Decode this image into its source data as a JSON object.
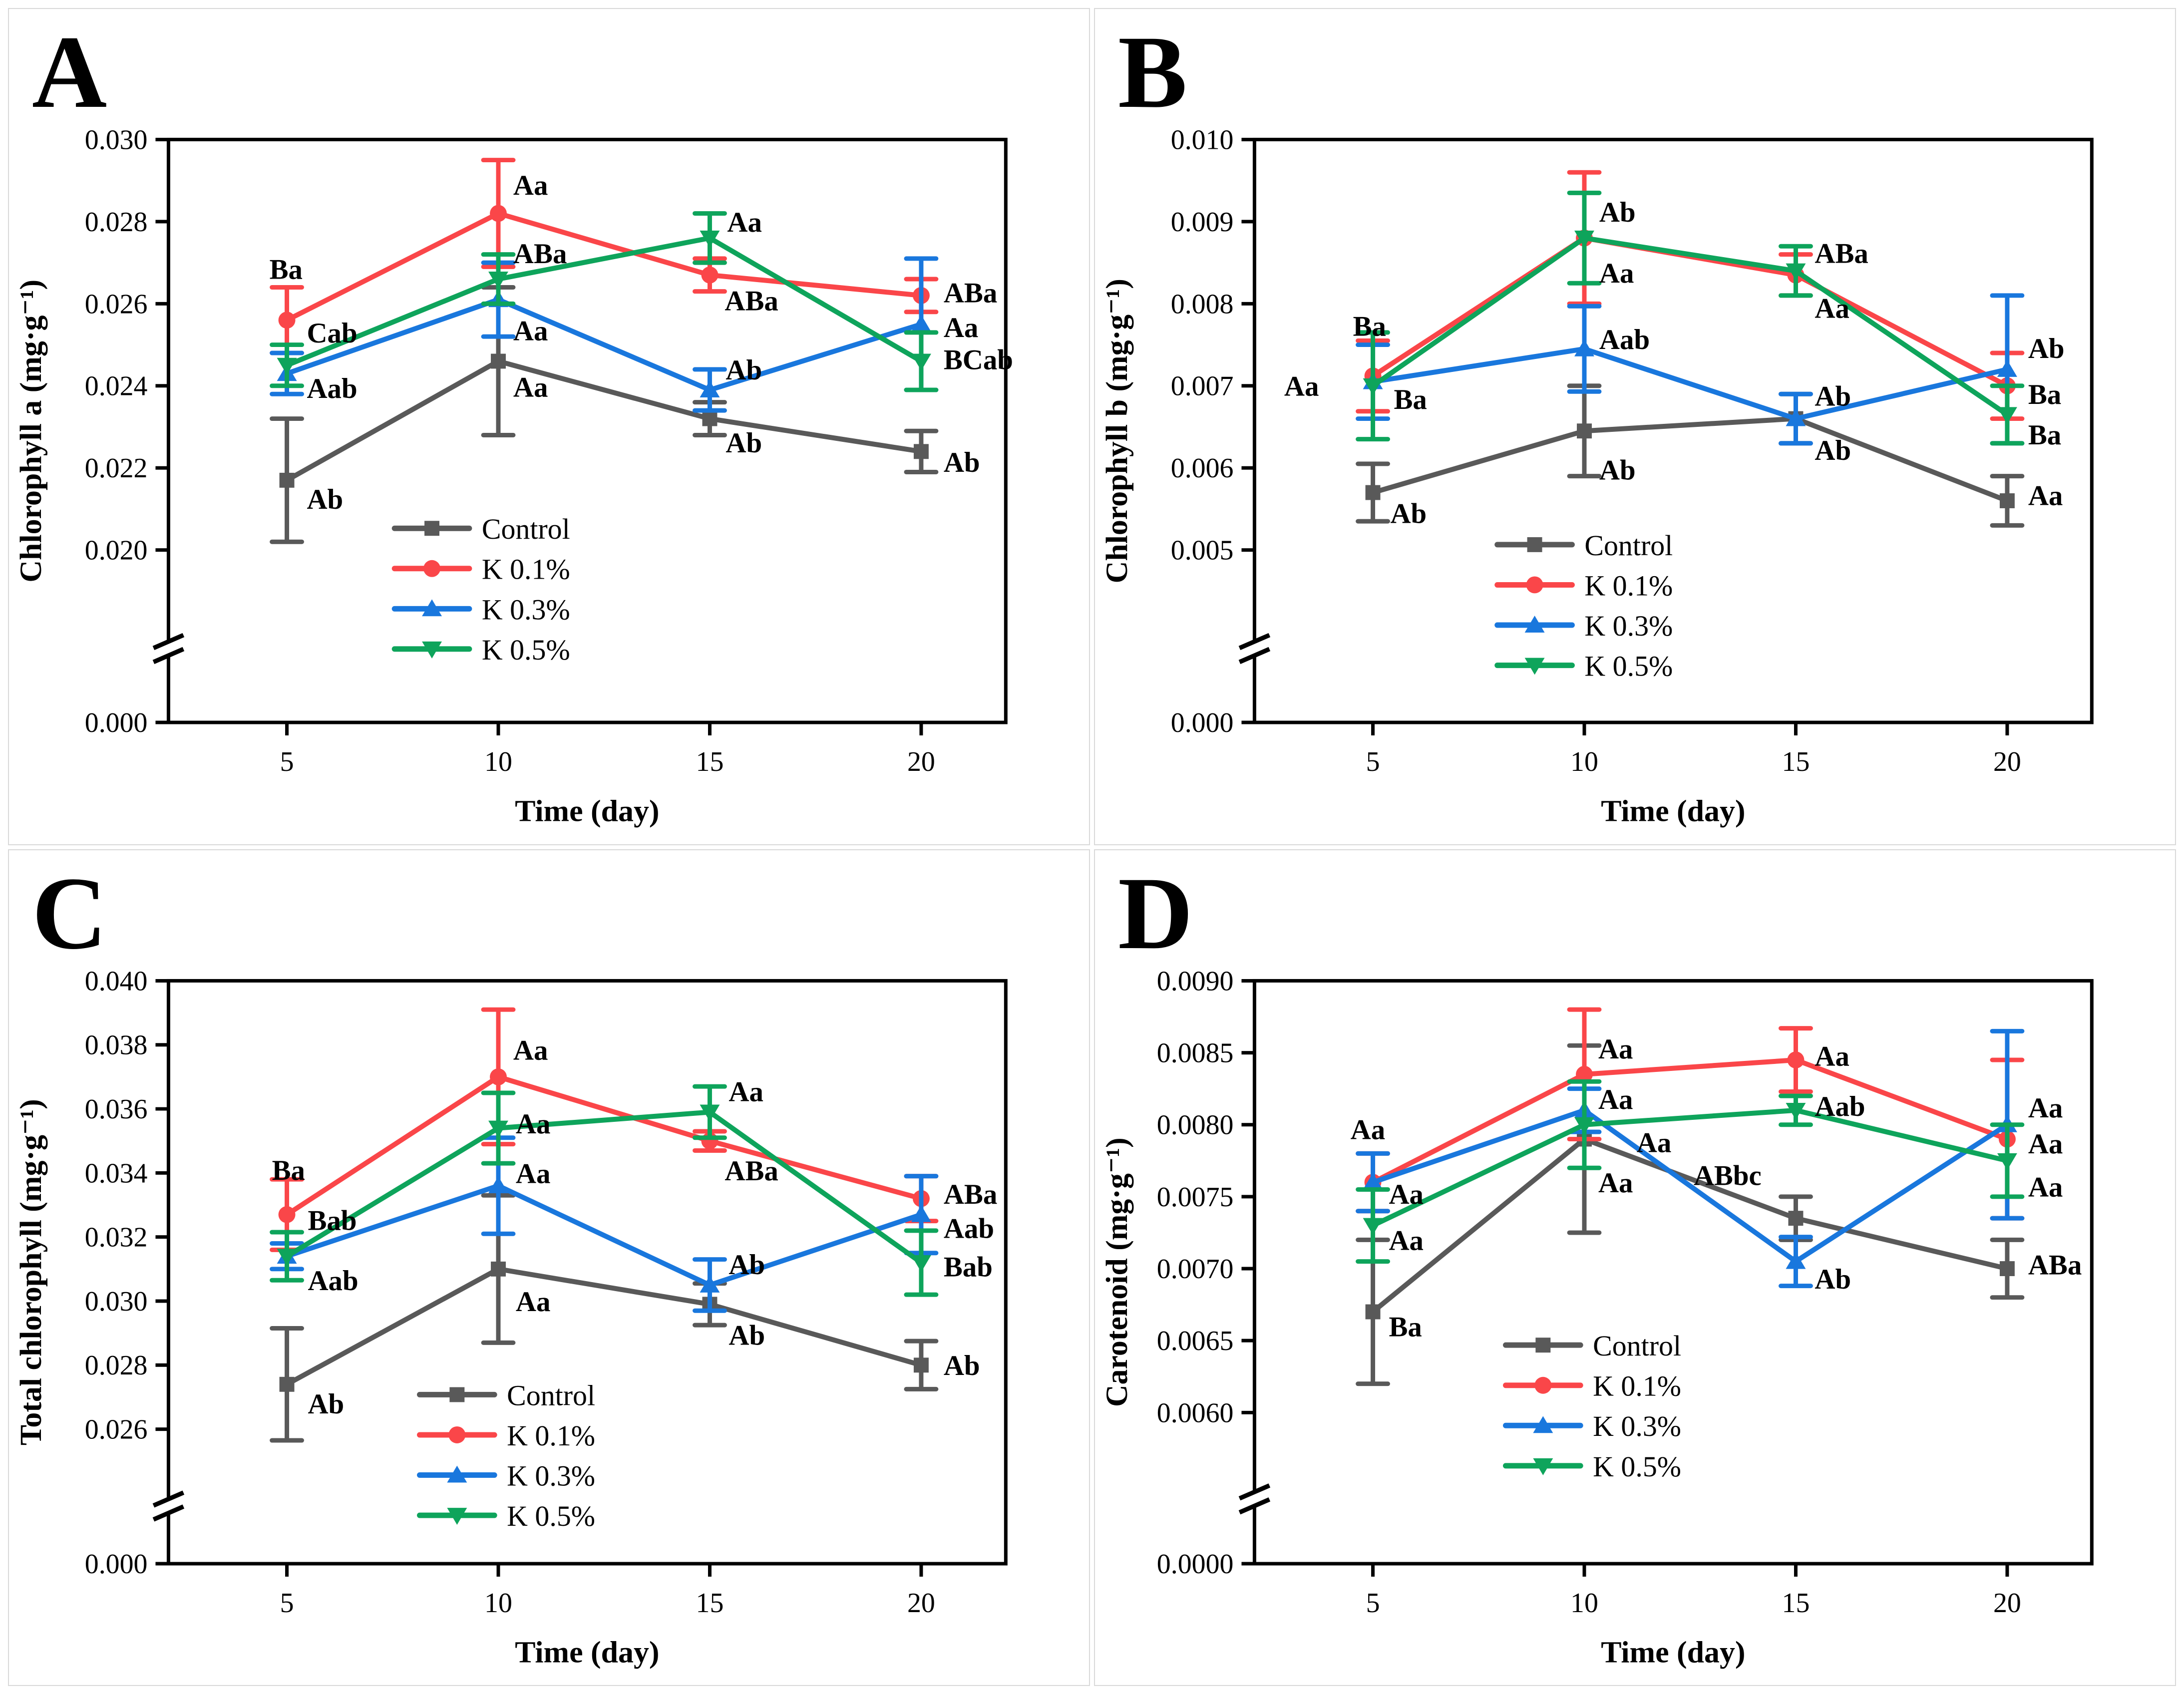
{
  "figure": {
    "background": "#ffffff",
    "panel_border_color": "#d9d9d9",
    "axis_color": "#000000",
    "legend_labels": [
      "Control",
      "K 0.1%",
      "K 0.3%",
      "K 0.5%"
    ],
    "series_colors": {
      "control": "#595959",
      "k01": "#FA4649",
      "k03": "#1977DD",
      "k05": "#0EA45B"
    }
  },
  "chart_data": [
    {
      "type": "line",
      "panel_label": "A",
      "xlabel": "Time (day)",
      "ylabel": "Chlorophyll a (mg·g⁻¹)",
      "x": [
        5,
        10,
        15,
        20
      ],
      "x_tick_labels": [
        "5",
        "10",
        "15",
        "20"
      ],
      "xlim": [
        2.2,
        22
      ],
      "y_axis": {
        "axis_break": true,
        "zero_label": "0.000",
        "ticks": [
          {
            "v": 0.03,
            "label": "0.030"
          },
          {
            "v": 0.028,
            "label": "0.028"
          },
          {
            "v": 0.026,
            "label": "0.026"
          },
          {
            "v": 0.024,
            "label": "0.024"
          },
          {
            "v": 0.022,
            "label": "0.022"
          },
          {
            "v": 0.02,
            "label": "0.020"
          }
        ]
      },
      "legend": {
        "fx": 0.27,
        "fy": 0.667
      },
      "series": [
        {
          "name": "Control",
          "color": "#595959",
          "marker": "square",
          "y": [
            0.0217,
            0.0246,
            0.0232,
            0.0224
          ],
          "err": [
            0.0015,
            0.0018,
            0.0004,
            0.0005
          ]
        },
        {
          "name": "K 0.1%",
          "color": "#FA4649",
          "marker": "circle",
          "y": [
            0.0256,
            0.0282,
            0.0267,
            0.0262
          ],
          "err": [
            0.0008,
            0.0013,
            0.0004,
            0.0004
          ]
        },
        {
          "name": "K 0.3%",
          "color": "#1977DD",
          "marker": "triangle-up",
          "y": [
            0.0243,
            0.0261,
            0.0239,
            0.0255
          ],
          "err": [
            0.0005,
            0.0009,
            0.0005,
            0.0016
          ]
        },
        {
          "name": "K 0.5%",
          "color": "#0EA45B",
          "marker": "triangle-down",
          "y": [
            0.0245,
            0.0266,
            0.0276,
            0.0246
          ],
          "err": [
            0.0005,
            0.0006,
            0.0006,
            0.0007
          ]
        }
      ],
      "annotations": [
        {
          "x": 5,
          "y": 0.02685,
          "dx": -35,
          "text": "Ba"
        },
        {
          "x": 5,
          "y": 0.0253,
          "dx": 40,
          "text": "Cab"
        },
        {
          "x": 5,
          "y": 0.02395,
          "dx": 40,
          "text": "Aab"
        },
        {
          "x": 5,
          "y": 0.02125,
          "dx": 40,
          "text": "Ab"
        },
        {
          "x": 10,
          "y": 0.0289,
          "dx": 30,
          "text": "Aa"
        },
        {
          "x": 10,
          "y": 0.02723,
          "dx": 30,
          "text": "ABa"
        },
        {
          "x": 10,
          "y": 0.02535,
          "dx": 30,
          "text": "Aa"
        },
        {
          "x": 10,
          "y": 0.02398,
          "dx": 30,
          "text": "Aa"
        },
        {
          "x": 15,
          "y": 0.028,
          "dx": 35,
          "text": "Aa"
        },
        {
          "x": 15,
          "y": 0.02608,
          "dx": 30,
          "text": "ABa"
        },
        {
          "x": 15,
          "y": 0.0244,
          "dx": 32,
          "text": "Ab"
        },
        {
          "x": 15,
          "y": 0.02262,
          "dx": 32,
          "text": "Ab"
        },
        {
          "x": 20,
          "y": 0.02628,
          "dx": 45,
          "text": "ABa"
        },
        {
          "x": 20,
          "y": 0.02543,
          "dx": 45,
          "text": "Aa"
        },
        {
          "x": 20,
          "y": 0.02465,
          "dx": 45,
          "text": "BCab"
        },
        {
          "x": 20,
          "y": 0.02215,
          "dx": 45,
          "text": "Ab"
        }
      ]
    },
    {
      "type": "line",
      "panel_label": "B",
      "xlabel": "Time (day)",
      "ylabel": "Chlorophyll b (mg·g⁻¹)",
      "x": [
        5,
        10,
        15,
        20
      ],
      "x_tick_labels": [
        "5",
        "10",
        "15",
        "20"
      ],
      "xlim": [
        2.2,
        22
      ],
      "y_axis": {
        "axis_break": true,
        "zero_label": "0.000",
        "ticks": [
          {
            "v": 0.01,
            "label": "0.010"
          },
          {
            "v": 0.009,
            "label": "0.009"
          },
          {
            "v": 0.008,
            "label": "0.008"
          },
          {
            "v": 0.007,
            "label": "0.007"
          },
          {
            "v": 0.006,
            "label": "0.006"
          },
          {
            "v": 0.005,
            "label": "0.005"
          }
        ]
      },
      "legend": {
        "fx": 0.29,
        "fy": 0.695
      },
      "series": [
        {
          "name": "Control",
          "color": "#595959",
          "marker": "square",
          "y": [
            0.0057,
            0.00645,
            0.0066,
            0.0056
          ],
          "err": [
            0.00035,
            0.00055,
            0.0003,
            0.0003
          ]
        },
        {
          "name": "K 0.1%",
          "color": "#FA4649",
          "marker": "circle",
          "y": [
            0.00712,
            0.0088,
            0.00835,
            0.007
          ],
          "err": [
            0.00043,
            0.0008,
            0.00025,
            0.0004
          ]
        },
        {
          "name": "K 0.3%",
          "color": "#1977DD",
          "marker": "triangle-up",
          "y": [
            0.00705,
            0.00745,
            0.0066,
            0.0072
          ],
          "err": [
            0.00045,
            0.00052,
            0.0003,
            0.0009
          ]
        },
        {
          "name": "K 0.5%",
          "color": "#0EA45B",
          "marker": "triangle-down",
          "y": [
            0.007,
            0.0088,
            0.0084,
            0.00665
          ],
          "err": [
            0.00065,
            0.00055,
            0.0003,
            0.00035
          ]
        }
      ],
      "annotations": [
        {
          "x": 5,
          "y": 0.00773,
          "dx": -40,
          "text": "Ba"
        },
        {
          "x": 5,
          "y": 0.007,
          "dx": -178,
          "text": "Aa"
        },
        {
          "x": 5,
          "y": 0.00684,
          "dx": 42,
          "text": "Ba"
        },
        {
          "x": 5,
          "y": 0.00545,
          "dx": 35,
          "text": "Ab"
        },
        {
          "x": 10,
          "y": 0.00912,
          "dx": 30,
          "text": "Ab"
        },
        {
          "x": 10,
          "y": 0.00838,
          "dx": 30,
          "text": "Aa"
        },
        {
          "x": 10,
          "y": 0.00757,
          "dx": 30,
          "text": "Aab"
        },
        {
          "x": 10,
          "y": 0.00598,
          "dx": 30,
          "text": "Ab"
        },
        {
          "x": 15,
          "y": 0.00862,
          "dx": 38,
          "text": "ABa"
        },
        {
          "x": 15,
          "y": 0.00795,
          "dx": 38,
          "text": "Aa"
        },
        {
          "x": 15,
          "y": 0.00688,
          "dx": 38,
          "text": "Ab"
        },
        {
          "x": 15,
          "y": 0.00622,
          "dx": 38,
          "text": "Ab"
        },
        {
          "x": 20,
          "y": 0.00746,
          "dx": 42,
          "text": "Ab"
        },
        {
          "x": 20,
          "y": 0.0069,
          "dx": 42,
          "text": "Ba"
        },
        {
          "x": 20,
          "y": 0.00641,
          "dx": 42,
          "text": "Ba"
        },
        {
          "x": 20,
          "y": 0.00567,
          "dx": 42,
          "text": "Aa"
        }
      ]
    },
    {
      "type": "line",
      "panel_label": "C",
      "xlabel": "Time (day)",
      "ylabel": "Total chlorophyll (mg·g⁻¹)",
      "x": [
        5,
        10,
        15,
        20
      ],
      "x_tick_labels": [
        "5",
        "10",
        "15",
        "20"
      ],
      "xlim": [
        2.2,
        22
      ],
      "y_axis": {
        "axis_break": true,
        "zero_label": "0.000",
        "ticks": [
          {
            "v": 0.04,
            "label": "0.040"
          },
          {
            "v": 0.038,
            "label": "0.038"
          },
          {
            "v": 0.036,
            "label": "0.036"
          },
          {
            "v": 0.034,
            "label": "0.034"
          },
          {
            "v": 0.032,
            "label": "0.032"
          },
          {
            "v": 0.03,
            "label": "0.030"
          },
          {
            "v": 0.028,
            "label": "0.028"
          },
          {
            "v": 0.026,
            "label": "0.026"
          }
        ]
      },
      "legend": {
        "fx": 0.3,
        "fy": 0.71
      },
      "series": [
        {
          "name": "Control",
          "color": "#595959",
          "marker": "square",
          "y": [
            0.0274,
            0.031,
            0.0299,
            0.028
          ],
          "err": [
            0.00175,
            0.0023,
            0.00065,
            0.00075
          ]
        },
        {
          "name": "K 0.1%",
          "color": "#FA4649",
          "marker": "circle",
          "y": [
            0.0327,
            0.037,
            0.035,
            0.0332
          ],
          "err": [
            0.0011,
            0.0021,
            0.0003,
            0.0007
          ]
        },
        {
          "name": "K 0.3%",
          "color": "#1977DD",
          "marker": "triangle-up",
          "y": [
            0.0314,
            0.0336,
            0.0305,
            0.0327
          ],
          "err": [
            0.0004,
            0.0015,
            0.0008,
            0.0012
          ]
        },
        {
          "name": "K 0.5%",
          "color": "#0EA45B",
          "marker": "triangle-down",
          "y": [
            0.0314,
            0.0354,
            0.0359,
            0.0312
          ],
          "err": [
            0.00075,
            0.0011,
            0.0008,
            0.001
          ]
        }
      ],
      "annotations": [
        {
          "x": 5,
          "y": 0.0341,
          "dx": -30,
          "text": "Ba"
        },
        {
          "x": 5,
          "y": 0.03253,
          "dx": 42,
          "text": "Bab"
        },
        {
          "x": 5,
          "y": 0.03065,
          "dx": 42,
          "text": "Aab"
        },
        {
          "x": 5,
          "y": 0.0268,
          "dx": 42,
          "text": "Ab"
        },
        {
          "x": 10,
          "y": 0.03785,
          "dx": 30,
          "text": "Aa"
        },
        {
          "x": 10,
          "y": 0.03555,
          "dx": 35,
          "text": "Aa"
        },
        {
          "x": 10,
          "y": 0.034,
          "dx": 35,
          "text": "Aa"
        },
        {
          "x": 10,
          "y": 0.03,
          "dx": 35,
          "text": "Aa"
        },
        {
          "x": 15,
          "y": 0.03655,
          "dx": 38,
          "text": "Aa"
        },
        {
          "x": 15,
          "y": 0.03408,
          "dx": 30,
          "text": "ABa"
        },
        {
          "x": 15,
          "y": 0.03115,
          "dx": 38,
          "text": "Ab"
        },
        {
          "x": 15,
          "y": 0.02895,
          "dx": 38,
          "text": "Ab"
        },
        {
          "x": 20,
          "y": 0.03335,
          "dx": 45,
          "text": "ABa"
        },
        {
          "x": 20,
          "y": 0.03228,
          "dx": 45,
          "text": "Aab"
        },
        {
          "x": 20,
          "y": 0.03108,
          "dx": 45,
          "text": "Bab"
        },
        {
          "x": 20,
          "y": 0.028,
          "dx": 45,
          "text": "Ab"
        }
      ]
    },
    {
      "type": "line",
      "panel_label": "D",
      "xlabel": "Time (day)",
      "ylabel": "Carotenoid (mg·g⁻¹)",
      "x": [
        5,
        10,
        15,
        20
      ],
      "x_tick_labels": [
        "5",
        "10",
        "15",
        "20"
      ],
      "xlim": [
        2.2,
        22
      ],
      "y_axis": {
        "axis_break": true,
        "zero_label": "0.0000",
        "ticks": [
          {
            "v": 0.009,
            "label": "0.0090"
          },
          {
            "v": 0.0085,
            "label": "0.0085"
          },
          {
            "v": 0.008,
            "label": "0.0080"
          },
          {
            "v": 0.0075,
            "label": "0.0075"
          },
          {
            "v": 0.007,
            "label": "0.0070"
          },
          {
            "v": 0.0065,
            "label": "0.0065"
          },
          {
            "v": 0.006,
            "label": "0.0060"
          }
        ]
      },
      "legend": {
        "fx": 0.3,
        "fy": 0.625
      },
      "series": [
        {
          "name": "Control",
          "color": "#595959",
          "marker": "square",
          "y": [
            0.0067,
            0.0079,
            0.00735,
            0.007
          ],
          "err": [
            0.0005,
            0.00065,
            0.00015,
            0.0002
          ]
        },
        {
          "name": "K 0.1%",
          "color": "#FA4649",
          "marker": "circle",
          "y": [
            0.0076,
            0.00835,
            0.00845,
            0.0079
          ],
          "err": [
            0.0002,
            0.00045,
            0.00022,
            0.00055
          ]
        },
        {
          "name": "K 0.3%",
          "color": "#1977DD",
          "marker": "triangle-up",
          "y": [
            0.0076,
            0.0081,
            0.00705,
            0.008
          ],
          "err": [
            0.0002,
            0.00015,
            0.00017,
            0.00065
          ]
        },
        {
          "name": "K 0.5%",
          "color": "#0EA45B",
          "marker": "triangle-down",
          "y": [
            0.0073,
            0.008,
            0.0081,
            0.00775
          ],
          "err": [
            0.00025,
            0.0003,
            0.0001,
            0.00025
          ]
        }
      ],
      "annotations": [
        {
          "x": 5,
          "y": 0.00797,
          "dx": -45,
          "text": "Aa"
        },
        {
          "x": 5,
          "y": 0.00752,
          "dx": 32,
          "text": "Aa"
        },
        {
          "x": 5,
          "y": 0.0072,
          "dx": 32,
          "text": "Aa"
        },
        {
          "x": 5,
          "y": 0.0066,
          "dx": 32,
          "text": "Ba"
        },
        {
          "x": 10,
          "y": 0.00853,
          "dx": 28,
          "text": "Aa"
        },
        {
          "x": 10,
          "y": 0.00818,
          "dx": 28,
          "text": "Aa"
        },
        {
          "x": 10,
          "y": 0.00788,
          "dx": 105,
          "text": "Aa"
        },
        {
          "x": 10,
          "y": 0.0076,
          "dx": 28,
          "text": "Aa"
        },
        {
          "x": 15,
          "y": 0.00848,
          "dx": 38,
          "text": "Aa"
        },
        {
          "x": 15,
          "y": 0.00813,
          "dx": 38,
          "text": "Aab"
        },
        {
          "x": 15,
          "y": 0.00765,
          "dx": -205,
          "text": "ABbc"
        },
        {
          "x": 15,
          "y": 0.00693,
          "dx": 38,
          "text": "Ab"
        },
        {
          "x": 20,
          "y": 0.00812,
          "dx": 42,
          "text": "Aa"
        },
        {
          "x": 20,
          "y": 0.00787,
          "dx": 42,
          "text": "Aa"
        },
        {
          "x": 20,
          "y": 0.00757,
          "dx": 42,
          "text": "Aa"
        },
        {
          "x": 20,
          "y": 0.00703,
          "dx": 42,
          "text": "ABa"
        }
      ]
    }
  ]
}
